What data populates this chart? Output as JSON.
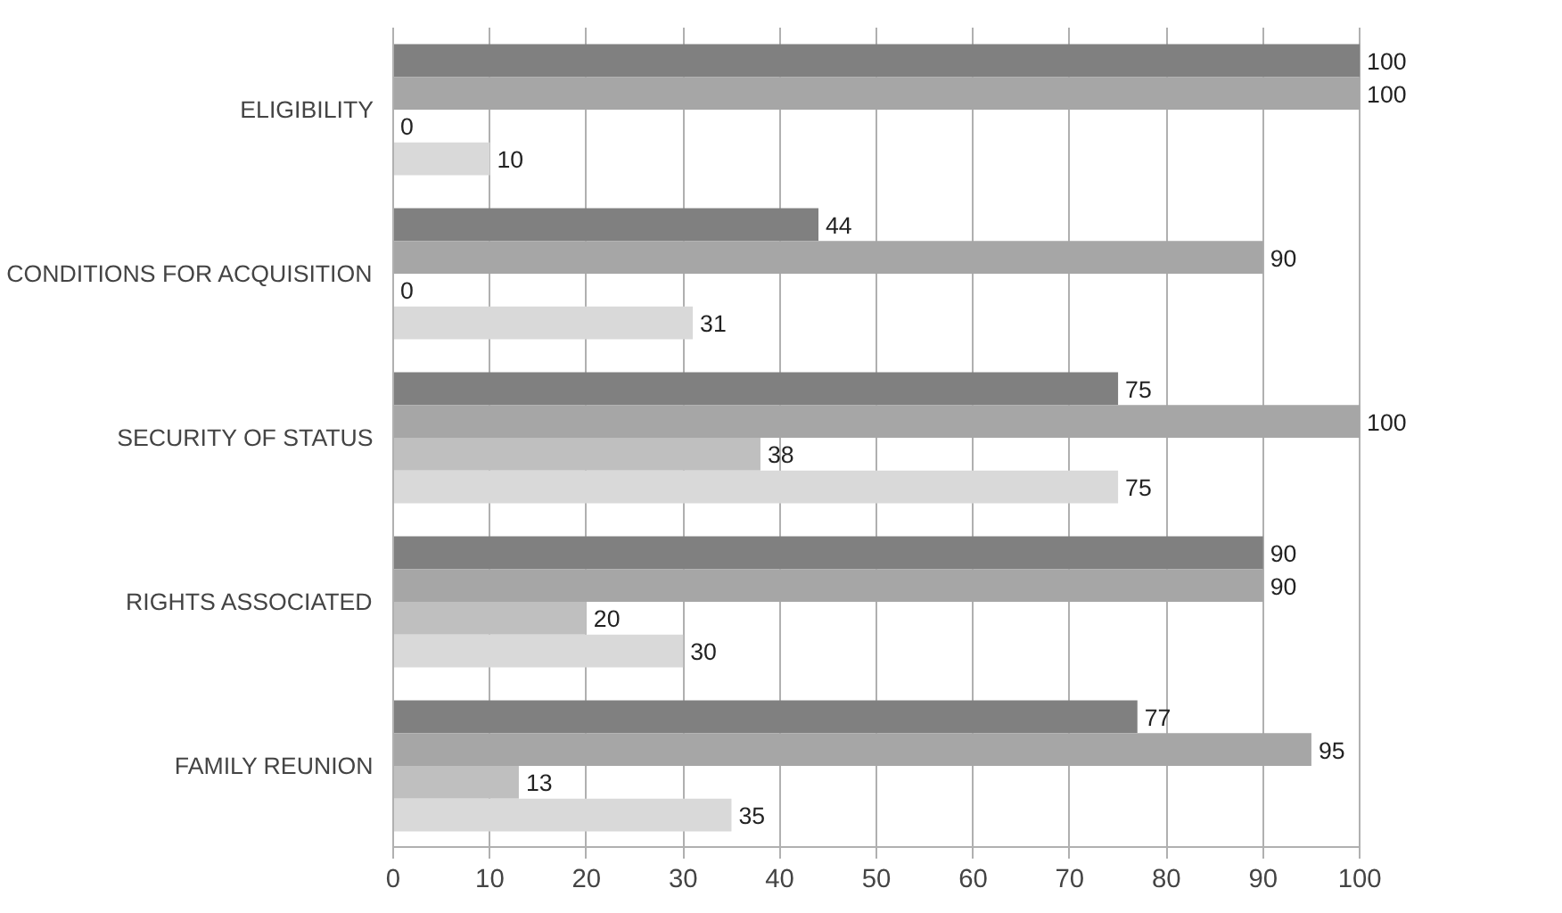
{
  "chart_data": {
    "type": "bar",
    "orientation": "horizontal",
    "categories": [
      "ELIGIBILITY",
      "CONDITIONS FOR ACQUISITION",
      "SECURITY OF STATUS",
      "RIGHTS ASSOCIATED",
      "FAMILY REUNION"
    ],
    "series": [
      {
        "color": "#808080",
        "values": [
          100,
          44,
          75,
          90,
          77
        ]
      },
      {
        "color": "#a6a6a6",
        "values": [
          100,
          90,
          100,
          90,
          95
        ]
      },
      {
        "color": "#bfbfbf",
        "values": [
          0,
          0,
          38,
          20,
          13
        ]
      },
      {
        "color": "#d9d9d9",
        "values": [
          10,
          31,
          75,
          30,
          35
        ]
      }
    ],
    "xlim": [
      0,
      100
    ],
    "xticks": [
      0,
      10,
      20,
      30,
      40,
      50,
      60,
      70,
      80,
      90,
      100
    ],
    "grid": "x",
    "data_labels": true
  }
}
